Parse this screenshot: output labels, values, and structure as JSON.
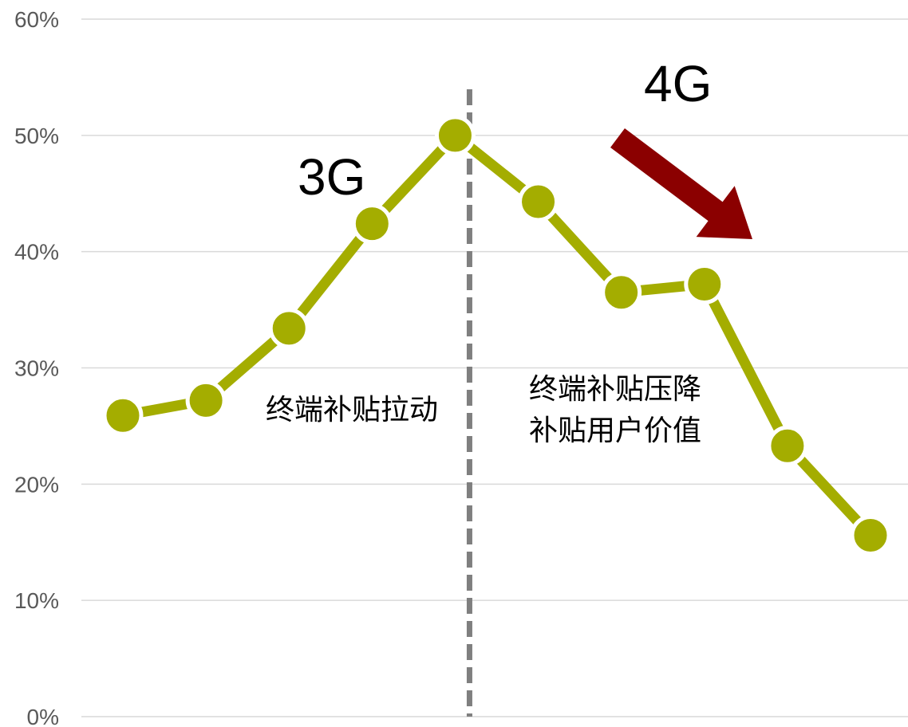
{
  "chart_data": {
    "type": "line",
    "title": "",
    "xlabel": "",
    "ylabel": "",
    "ylim": [
      0,
      60
    ],
    "y_tick_labels": [
      "0%",
      "10%",
      "20%",
      "30%",
      "40%",
      "50%",
      "60%"
    ],
    "grid": true,
    "legend": "none",
    "series": [
      {
        "values": [
          25.9,
          27.2,
          33.4,
          42.4,
          50.0,
          44.3,
          36.5,
          37.2,
          23.3,
          15.6
        ]
      }
    ],
    "divider_after_index": 4,
    "annotations": {
      "gen_3g": "3G",
      "gen_4g": "4G",
      "note_left": "终端补贴拉动",
      "note_right_line1": "终端补贴压降",
      "note_right_line2": "补贴用户价值"
    },
    "colors": {
      "series": "#a4ad00",
      "divider": "#7f7f7f",
      "arrow": "#8b0000",
      "grid": "#d9d9d9",
      "tick_text": "#595959"
    }
  }
}
